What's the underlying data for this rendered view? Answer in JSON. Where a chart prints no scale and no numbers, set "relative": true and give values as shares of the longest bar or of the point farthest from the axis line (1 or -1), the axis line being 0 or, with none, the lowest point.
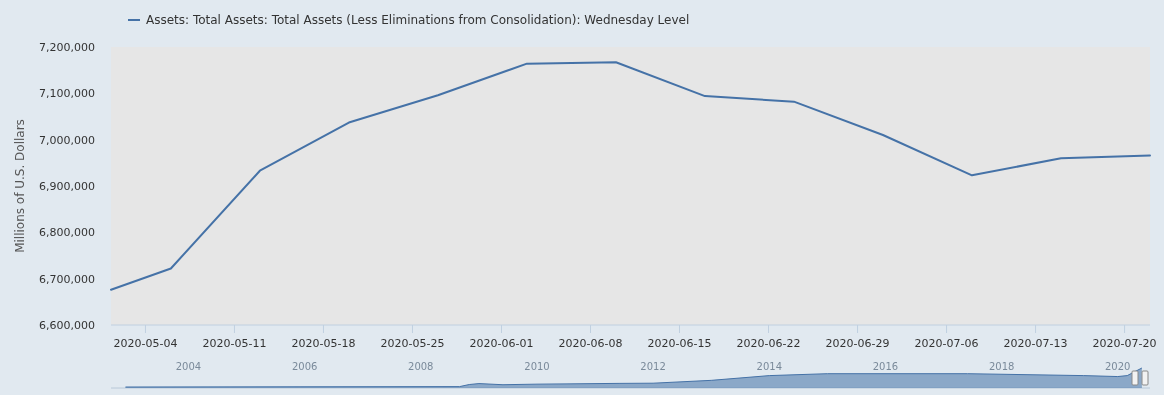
{
  "chart_data": [
    {
      "type": "line",
      "ylabel": "Millions of U.S. Dollars",
      "x": [
        "2020-05-01T07:00",
        "2020-05-06",
        "2020-05-13",
        "2020-05-20",
        "2020-05-27",
        "2020-06-03",
        "2020-06-10",
        "2020-06-17",
        "2020-06-24",
        "2020-07-01",
        "2020-07-08",
        "2020-07-15",
        "2020-07-22"
      ],
      "series": [
        {
          "name": "Assets: Total Assets: Total Assets (Less Eliminations from Consolidation): Wednesday Level",
          "color": "#4572a7",
          "values": [
            6676000,
            6722000,
            6933000,
            7037000,
            7096000,
            7164000,
            7167000,
            7094000,
            7082000,
            7010000,
            6923000,
            6960000,
            6966000
          ]
        }
      ],
      "xlim": [
        "2020-05-01T07:00",
        "2020-07-22"
      ],
      "xticks": [
        {
          "value": "2020-05-04",
          "label": "2020-05-04"
        },
        {
          "value": "2020-05-11",
          "label": "2020-05-11"
        },
        {
          "value": "2020-05-18",
          "label": "2020-05-18"
        },
        {
          "value": "2020-05-25",
          "label": "2020-05-25"
        },
        {
          "value": "2020-06-01",
          "label": "2020-06-01"
        },
        {
          "value": "2020-06-08",
          "label": "2020-06-08"
        },
        {
          "value": "2020-06-15",
          "label": "2020-06-15"
        },
        {
          "value": "2020-06-22",
          "label": "2020-06-22"
        },
        {
          "value": "2020-06-29",
          "label": "2020-06-29"
        },
        {
          "value": "2020-07-06",
          "label": "2020-07-06"
        },
        {
          "value": "2020-07-13",
          "label": "2020-07-13"
        },
        {
          "value": "2020-07-20",
          "label": "2020-07-20"
        }
      ],
      "ylim": [
        6600000,
        7200000
      ],
      "yticks": [
        {
          "value": 6600000,
          "label": "6,600,000"
        },
        {
          "value": 6700000,
          "label": "6,700,000"
        },
        {
          "value": 6800000,
          "label": "6,800,000"
        },
        {
          "value": 6900000,
          "label": "6,900,000"
        },
        {
          "value": 7000000,
          "label": "7,000,000"
        },
        {
          "value": 7100000,
          "label": "7,100,000"
        },
        {
          "value": 7200000,
          "label": "7,200,000"
        }
      ],
      "legend": "top left",
      "marker": "none",
      "line_style": "solid",
      "grid": false
    },
    {
      "type": "area",
      "relative": true,
      "tick_labels": "x",
      "x": [
        "2002-12",
        "2008-09",
        "2008-11",
        "2009-01",
        "2009-06",
        "2010-01",
        "2011-06",
        "2012-01",
        "2013-01",
        "2014-01",
        "2015-01",
        "2017-06",
        "2019-06",
        "2020-01",
        "2020-03",
        "2020-06"
      ],
      "series": [
        {
          "color": "#4572a7",
          "values": [
            0,
            0.02,
            0.13,
            0.18,
            0.12,
            0.15,
            0.19,
            0.2,
            0.35,
            0.6,
            0.7,
            0.7,
            0.6,
            0.55,
            0.6,
            1
          ]
        }
      ],
      "xlim": [
        "2002-09",
        "2020-07-22"
      ],
      "xticks": [
        {
          "value": "2004-01",
          "label": "2004"
        },
        {
          "value": "2006-01",
          "label": "2006"
        },
        {
          "value": "2008-01",
          "label": "2008"
        },
        {
          "value": "2010-01",
          "label": "2010"
        },
        {
          "value": "2012-01",
          "label": "2012"
        },
        {
          "value": "2014-01",
          "label": "2014"
        },
        {
          "value": "2016-01",
          "label": "2016"
        },
        {
          "value": "2018-01",
          "label": "2018"
        },
        {
          "value": "2020-01",
          "label": "2020"
        }
      ]
    }
  ]
}
